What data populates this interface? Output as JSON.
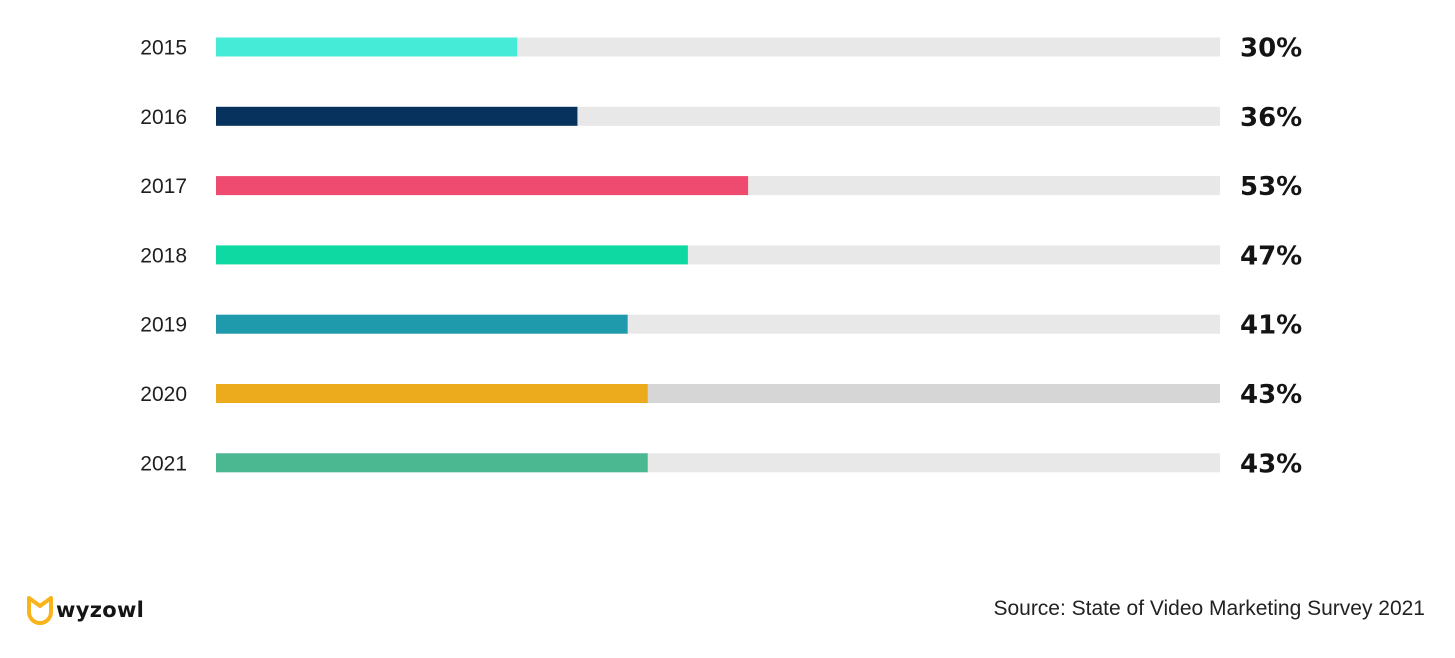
{
  "chart_data": {
    "type": "bar",
    "orientation": "horizontal",
    "categories": [
      "2015",
      "2016",
      "2017",
      "2018",
      "2019",
      "2020",
      "2021"
    ],
    "values": [
      30,
      36,
      53,
      47,
      41,
      43,
      43
    ],
    "value_labels": [
      "30%",
      "36%",
      "53%",
      "47%",
      "41%",
      "43%",
      "43%"
    ],
    "xlim": [
      0,
      100
    ],
    "unit": "%",
    "grid": false,
    "legend": "none",
    "colors": [
      "#45EBD6",
      "#07325E",
      "#EF4B71",
      "#0ED9A2",
      "#1F9AAD",
      "#ECAB1C",
      "#4BB892"
    ],
    "track_colors": [
      "#E8E8E8",
      "#E8E8E8",
      "#E8E8E8",
      "#E8E8E8",
      "#E8E8E8",
      "#D6D6D6",
      "#E8E8E8"
    ]
  },
  "footer": {
    "brand": "wyzowl",
    "brand_icon": "wyzowl-owl-logo-icon",
    "brand_color": "#F9B41B",
    "source": "Source: State of Video Marketing Survey 2021"
  }
}
